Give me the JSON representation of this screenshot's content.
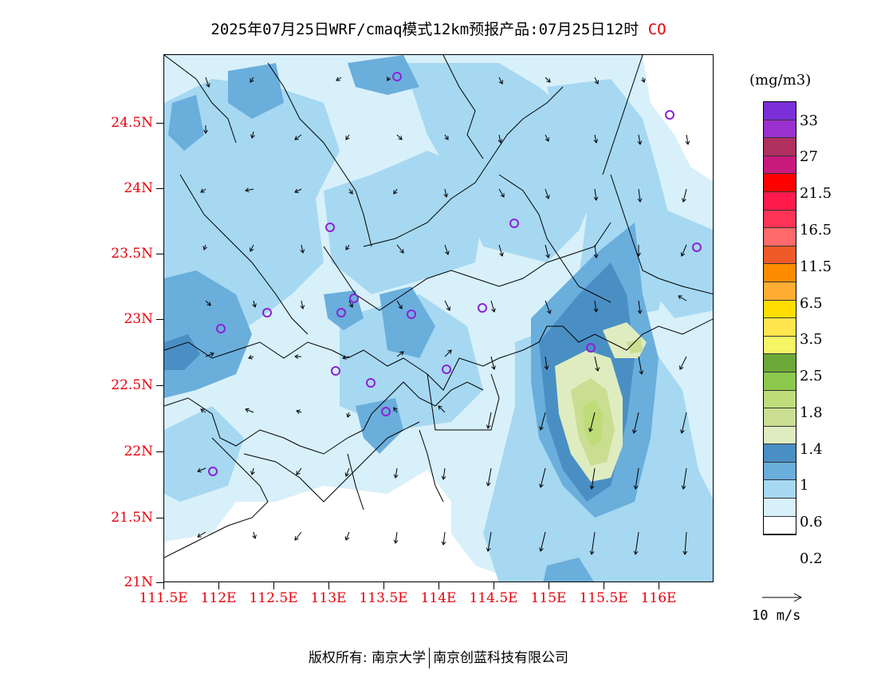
{
  "title": {
    "main": "2025年07月25日WRF/cmaq模式12km预报产品:07月25日12时",
    "pollutant": "CO"
  },
  "axes": {
    "lat_labels": [
      "24.5N",
      "24N",
      "23.5N",
      "23N",
      "22.5N",
      "22N",
      "21.5N",
      "21N"
    ],
    "lon_labels": [
      "111.5E",
      "112E",
      "112.5E",
      "113E",
      "113.5E",
      "114E",
      "114.5E",
      "115E",
      "115.5E",
      "116E"
    ]
  },
  "colorbar": {
    "unit": "(mg/m3)",
    "colors": [
      "#7b2fd9",
      "#9b30d0",
      "#b03060",
      "#c8197d",
      "#ff0000",
      "#ff1a4b",
      "#ff3355",
      "#ff6a6a",
      "#f05a28",
      "#ff8c00",
      "#ffad33",
      "#ffdd00",
      "#ffe64d",
      "#f5f566",
      "#6ca838",
      "#8cc84b",
      "#bedc78",
      "#c9de90",
      "#dfecc0",
      "#4a8fc4",
      "#6aaedc",
      "#a6d8f2",
      "#d8f0fa",
      "#ffffff"
    ],
    "labels": [
      "33",
      "27",
      "21.5",
      "16.5",
      "11.5",
      "6.5",
      "3.5",
      "2.5",
      "1.8",
      "1.4",
      "1",
      "0.6",
      "0.2"
    ]
  },
  "wind": {
    "reference_label": "10 m/s"
  },
  "footer": {
    "copyright": "版权所有: 南京大学",
    "company": "南京创蓝科技有限公司"
  }
}
